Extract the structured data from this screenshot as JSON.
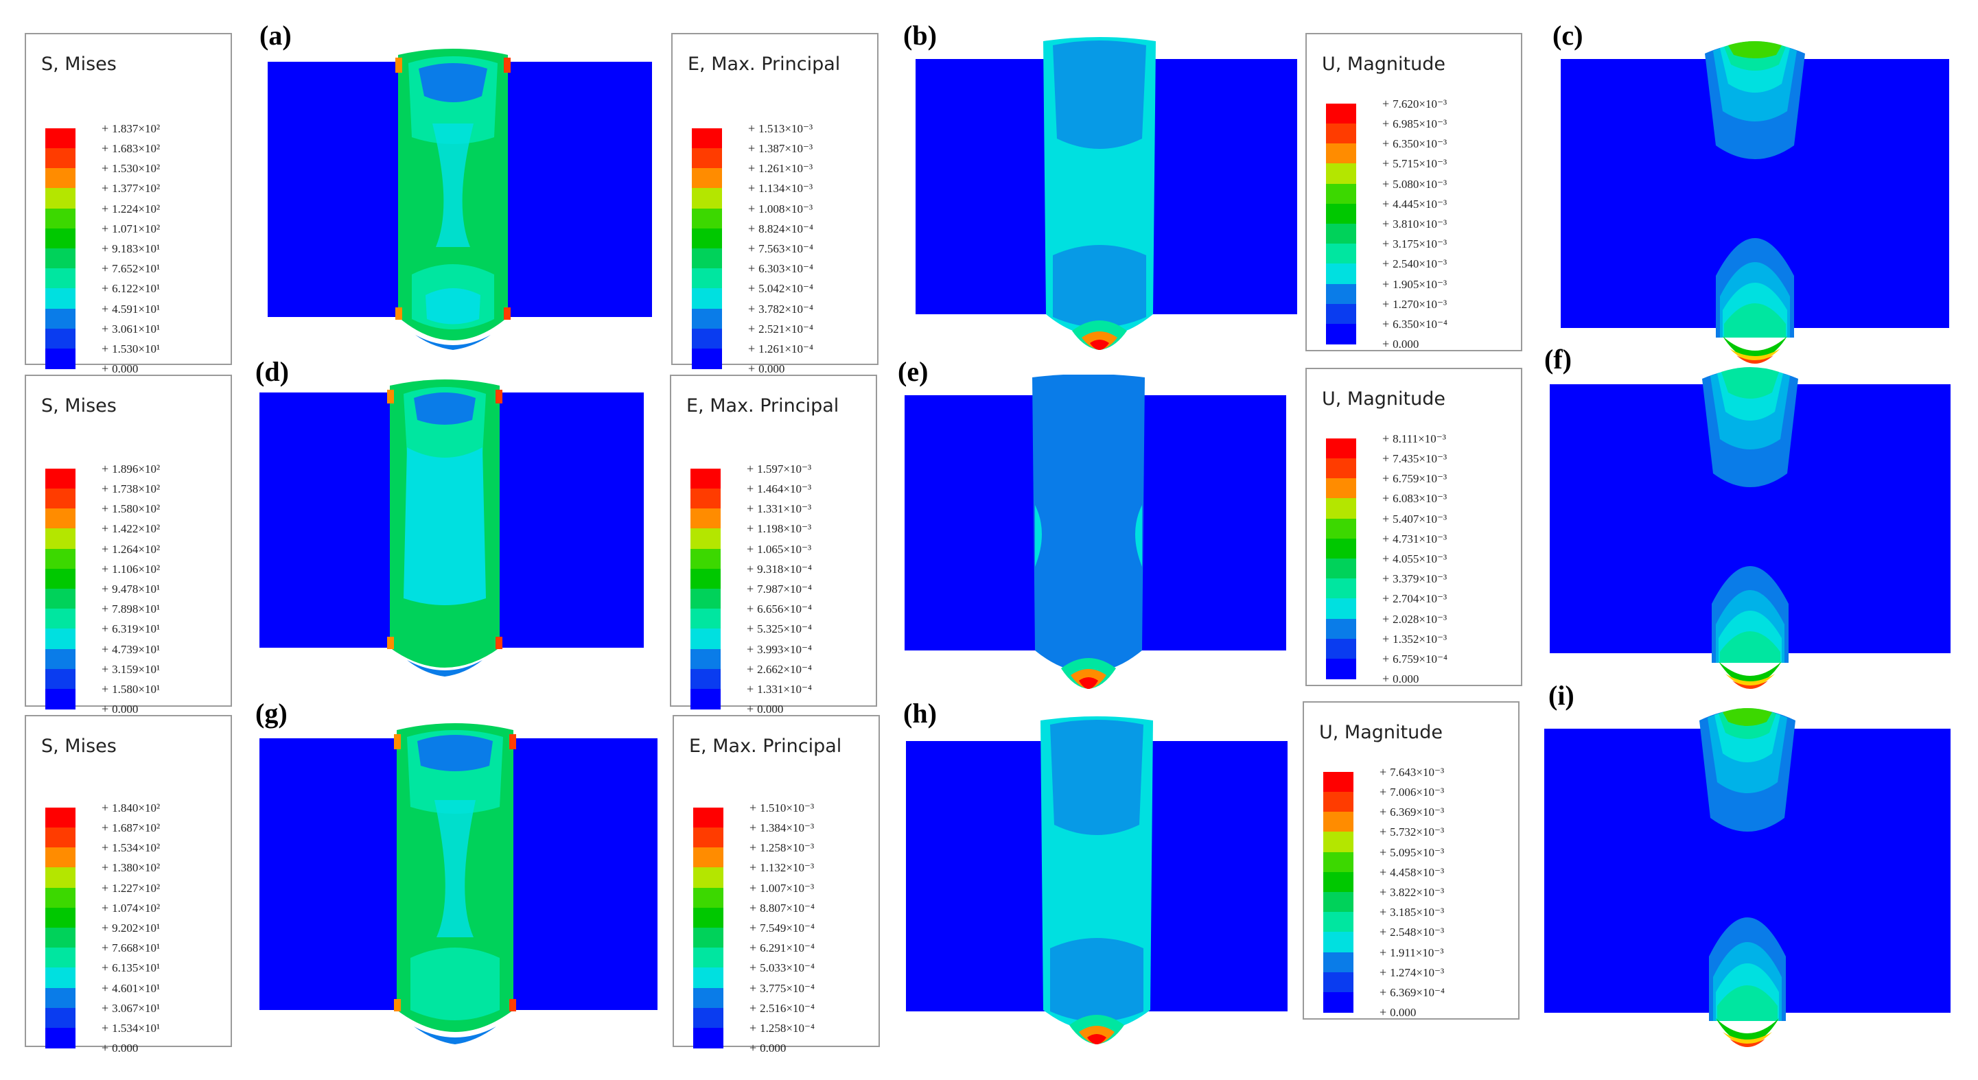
{
  "figure": {
    "panel_labels": [
      "(a)",
      "(b)",
      "(c)",
      "(d)",
      "(e)",
      "(f)",
      "(g)",
      "(h)",
      "(i)"
    ]
  },
  "colors": {
    "contour": [
      "#0000ff",
      "#0a3cf0",
      "#0a7ce8",
      "#00b2e8",
      "#00e0e0",
      "#00e6a0",
      "#00d25a",
      "#00c800",
      "#3cd800",
      "#b4e600",
      "#ffd000",
      "#ff8c00",
      "#ff3c00",
      "#ff0000"
    ]
  },
  "legends": [
    {
      "title": "S, Mises",
      "ticks": [
        "1.837×10²",
        "1.683×10²",
        "1.530×10²",
        "1.377×10²",
        "1.224×10²",
        "1.071×10²",
        "9.183×10¹",
        "7.652×10¹",
        "6.122×10¹",
        "4.591×10¹",
        "3.061×10¹",
        "1.530×10¹",
        "0.000"
      ]
    },
    {
      "title": "E, Max. Principal",
      "ticks": [
        "1.513×10⁻³",
        "1.387×10⁻³",
        "1.261×10⁻³",
        "1.134×10⁻³",
        "1.008×10⁻³",
        "8.824×10⁻⁴",
        "7.563×10⁻⁴",
        "6.303×10⁻⁴",
        "5.042×10⁻⁴",
        "3.782×10⁻⁴",
        "2.521×10⁻⁴",
        "1.261×10⁻⁴",
        "0.000"
      ]
    },
    {
      "title": "U, Magnitude",
      "ticks": [
        "7.620×10⁻³",
        "6.985×10⁻³",
        "6.350×10⁻³",
        "5.715×10⁻³",
        "5.080×10⁻³",
        "4.445×10⁻³",
        "3.810×10⁻³",
        "3.175×10⁻³",
        "2.540×10⁻³",
        "1.905×10⁻³",
        "1.270×10⁻³",
        "6.350×10⁻⁴",
        "0.000"
      ]
    },
    {
      "title": "S, Mises",
      "ticks": [
        "1.896×10²",
        "1.738×10²",
        "1.580×10²",
        "1.422×10²",
        "1.264×10²",
        "1.106×10²",
        "9.478×10¹",
        "7.898×10¹",
        "6.319×10¹",
        "4.739×10¹",
        "3.159×10¹",
        "1.580×10¹",
        "0.000"
      ]
    },
    {
      "title": "E, Max. Principal",
      "ticks": [
        "1.597×10⁻³",
        "1.464×10⁻³",
        "1.331×10⁻³",
        "1.198×10⁻³",
        "1.065×10⁻³",
        "9.318×10⁻⁴",
        "7.987×10⁻⁴",
        "6.656×10⁻⁴",
        "5.325×10⁻⁴",
        "3.993×10⁻⁴",
        "2.662×10⁻⁴",
        "1.331×10⁻⁴",
        "0.000"
      ]
    },
    {
      "title": "U, Magnitude",
      "ticks": [
        "8.111×10⁻³",
        "7.435×10⁻³",
        "6.759×10⁻³",
        "6.083×10⁻³",
        "5.407×10⁻³",
        "4.731×10⁻³",
        "4.055×10⁻³",
        "3.379×10⁻³",
        "2.704×10⁻³",
        "2.028×10⁻³",
        "1.352×10⁻³",
        "6.759×10⁻⁴",
        "0.000"
      ]
    },
    {
      "title": "S, Mises",
      "ticks": [
        "1.840×10²",
        "1.687×10²",
        "1.534×10²",
        "1.380×10²",
        "1.227×10²",
        "1.074×10²",
        "9.202×10¹",
        "7.668×10¹",
        "6.135×10¹",
        "4.601×10¹",
        "3.067×10¹",
        "1.534×10¹",
        "0.000"
      ]
    },
    {
      "title": "E, Max. Principal",
      "ticks": [
        "1.510×10⁻³",
        "1.384×10⁻³",
        "1.258×10⁻³",
        "1.132×10⁻³",
        "1.007×10⁻³",
        "8.807×10⁻⁴",
        "7.549×10⁻⁴",
        "6.291×10⁻⁴",
        "5.033×10⁻⁴",
        "3.775×10⁻⁴",
        "2.516×10⁻⁴",
        "1.258×10⁻⁴",
        "0.000"
      ]
    },
    {
      "title": "U, Magnitude",
      "ticks": [
        "7.643×10⁻³",
        "7.006×10⁻³",
        "6.369×10⁻³",
        "5.732×10⁻³",
        "5.095×10⁻³",
        "4.458×10⁻³",
        "3.822×10⁻³",
        "3.185×10⁻³",
        "2.548×10⁻³",
        "1.911×10⁻³",
        "1.274×10⁻³",
        "6.369×10⁻⁴",
        "0.000"
      ]
    }
  ]
}
